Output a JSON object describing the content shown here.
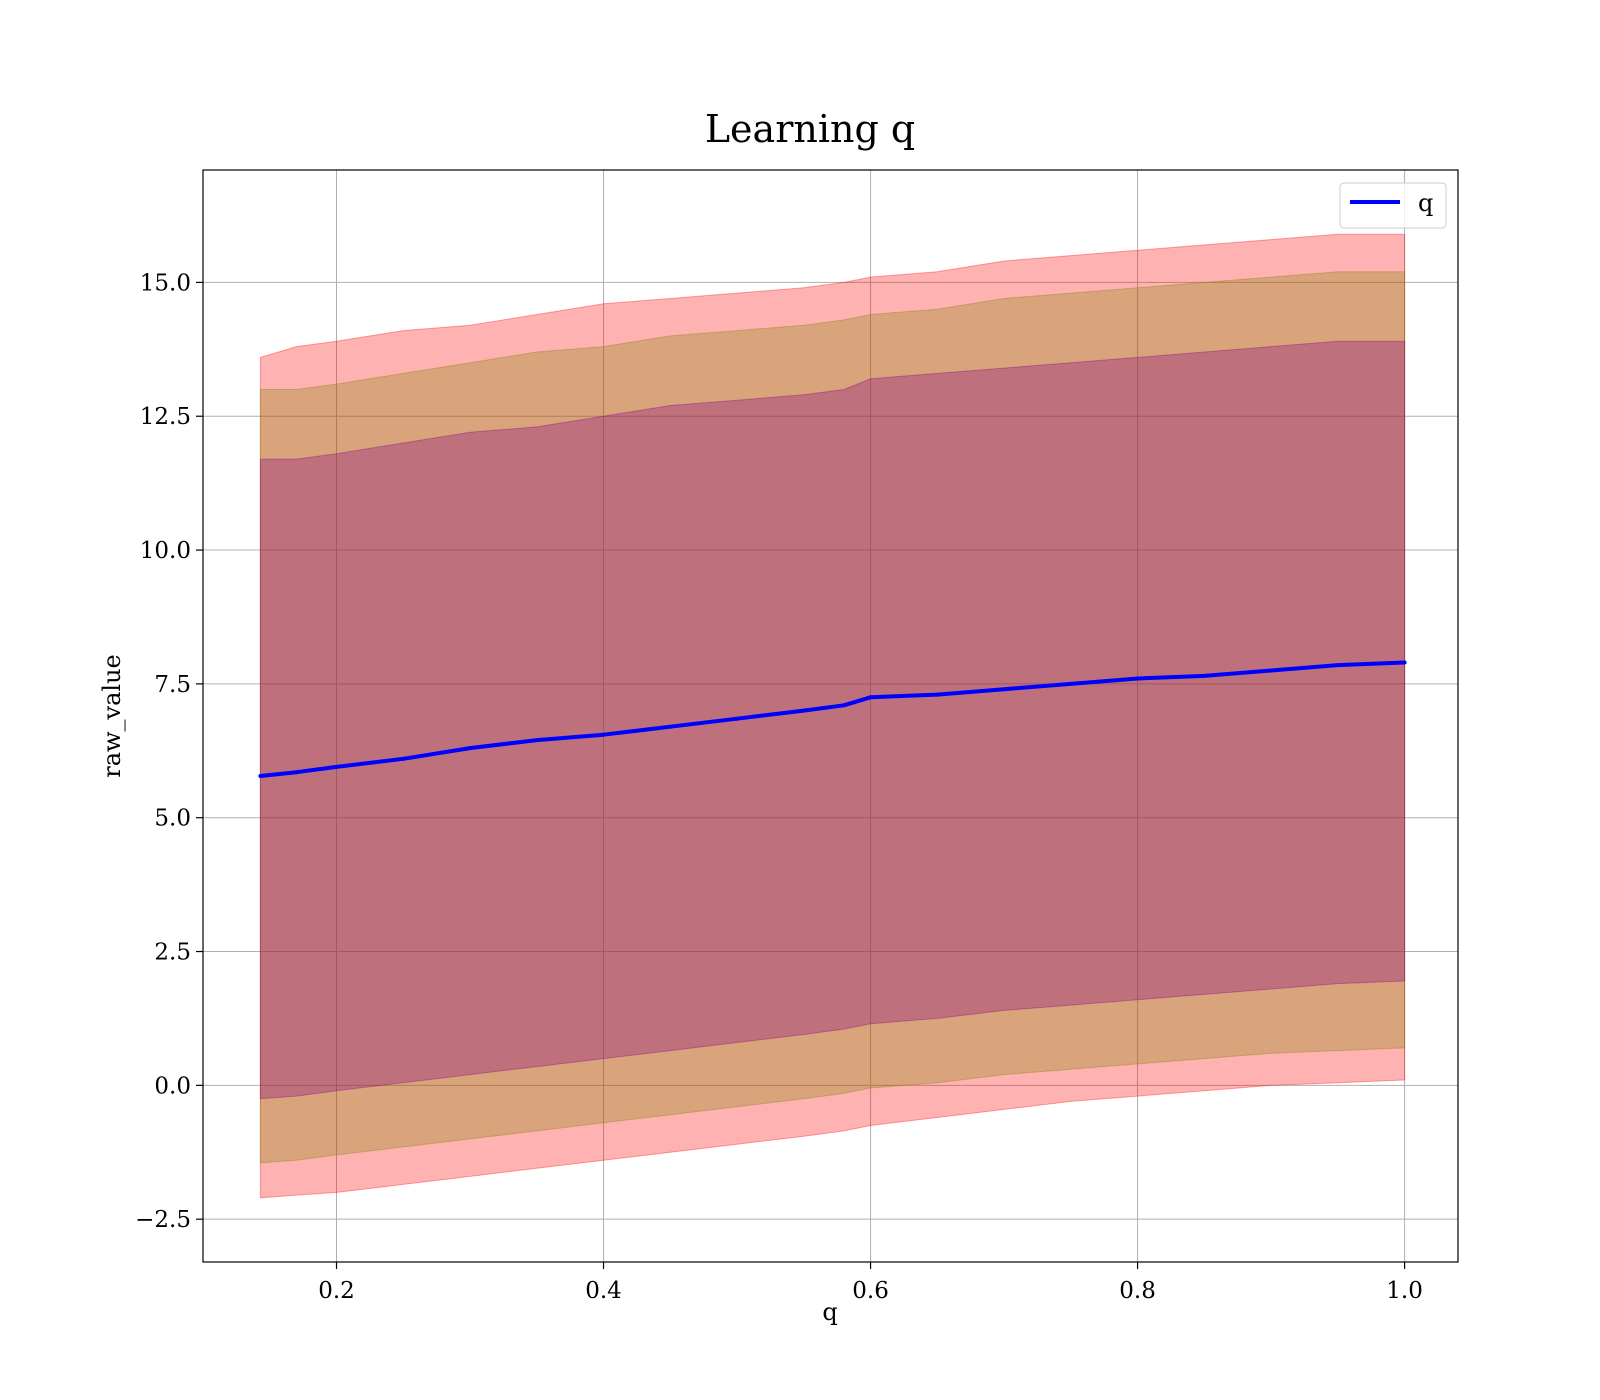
{
  "chart_data": {
    "type": "line",
    "title": "Learning q",
    "xlabel": "q",
    "ylabel": "raw_value",
    "xlim": [
      0.1,
      1.04
    ],
    "ylim": [
      -3.3,
      17.1
    ],
    "x_ticks": [
      0.2,
      0.4,
      0.6,
      0.8,
      1.0
    ],
    "x_tick_labels": [
      "0.2",
      "0.4",
      "0.6",
      "0.8",
      "1.0"
    ],
    "y_ticks": [
      -2.5,
      0.0,
      2.5,
      5.0,
      7.5,
      10.0,
      12.5,
      15.0
    ],
    "y_tick_labels": [
      "−2.5",
      "0.0",
      "2.5",
      "5.0",
      "7.5",
      "10.0",
      "12.5",
      "15.0"
    ],
    "grid": true,
    "legend_position": "top-right",
    "x": [
      0.143,
      0.17,
      0.2,
      0.25,
      0.3,
      0.35,
      0.4,
      0.45,
      0.5,
      0.55,
      0.58,
      0.6,
      0.65,
      0.7,
      0.75,
      0.8,
      0.85,
      0.9,
      0.95,
      1.0
    ],
    "series": [
      {
        "name": "q",
        "color": "#0000ff",
        "values": [
          5.78,
          5.85,
          5.95,
          6.1,
          6.3,
          6.45,
          6.55,
          6.7,
          6.85,
          7.0,
          7.1,
          7.25,
          7.3,
          7.4,
          7.5,
          7.6,
          7.65,
          7.75,
          7.85,
          7.9
        ]
      }
    ],
    "bands": [
      {
        "color": "#ff0000",
        "opacity": 0.3,
        "upper": [
          13.6,
          13.8,
          13.9,
          14.1,
          14.2,
          14.4,
          14.6,
          14.7,
          14.8,
          14.9,
          15.0,
          15.1,
          15.2,
          15.4,
          15.5,
          15.6,
          15.7,
          15.8,
          15.9,
          15.9
        ],
        "lower": [
          -2.1,
          -2.05,
          -2.0,
          -1.85,
          -1.7,
          -1.55,
          -1.4,
          -1.25,
          -1.1,
          -0.95,
          -0.85,
          -0.75,
          -0.6,
          -0.45,
          -0.3,
          -0.2,
          -0.1,
          0.0,
          0.05,
          0.1
        ]
      },
      {
        "color": "#808000",
        "opacity": 0.3,
        "upper": [
          13.0,
          13.0,
          13.1,
          13.3,
          13.5,
          13.7,
          13.8,
          14.0,
          14.1,
          14.2,
          14.3,
          14.4,
          14.5,
          14.7,
          14.8,
          14.9,
          15.0,
          15.1,
          15.2,
          15.2
        ],
        "lower": [
          -1.45,
          -1.4,
          -1.3,
          -1.15,
          -1.0,
          -0.85,
          -0.7,
          -0.55,
          -0.4,
          -0.25,
          -0.15,
          -0.05,
          0.05,
          0.2,
          0.3,
          0.4,
          0.5,
          0.6,
          0.65,
          0.7
        ]
      },
      {
        "color": "#800080",
        "opacity": 0.3,
        "upper": [
          11.7,
          11.7,
          11.8,
          12.0,
          12.2,
          12.3,
          12.5,
          12.7,
          12.8,
          12.9,
          13.0,
          13.2,
          13.3,
          13.4,
          13.5,
          13.6,
          13.7,
          13.8,
          13.9,
          13.9
        ],
        "lower": [
          -0.25,
          -0.2,
          -0.1,
          0.05,
          0.2,
          0.35,
          0.5,
          0.65,
          0.8,
          0.95,
          1.05,
          1.15,
          1.25,
          1.4,
          1.5,
          1.6,
          1.7,
          1.8,
          1.9,
          1.95
        ]
      }
    ]
  }
}
